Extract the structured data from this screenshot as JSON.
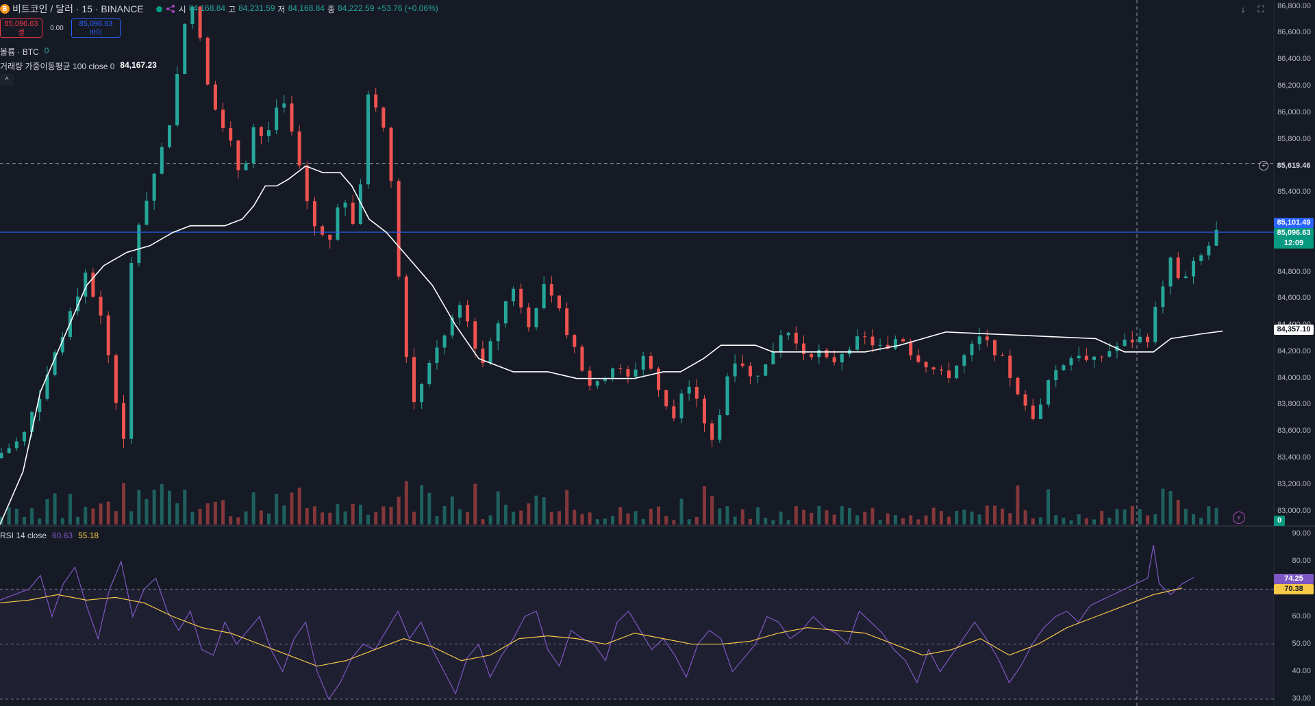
{
  "header": {
    "symbol_title": "비트코인 / 달러 · 15 · BINANCE",
    "btc_badge": "B",
    "ohlc": [
      {
        "k": "시",
        "v": "84,168.84"
      },
      {
        "k": "고",
        "v": "84,231.59"
      },
      {
        "k": "저",
        "v": "84,168.84"
      },
      {
        "k": "종",
        "v": "84,222.59"
      }
    ],
    "change": "+53.76 (+0.06%)"
  },
  "trade": {
    "sell_price": "85,096.63",
    "sell_label": "셀",
    "spread": "0.00",
    "buy_price": "85,096.63",
    "buy_label": "바이"
  },
  "legends": {
    "volume_label": "볼륨 · BTC",
    "volume_value": "0",
    "vwma_label": "거래량 가중이동평균 100 close 0",
    "vwma_value": "84,167.23",
    "collapse_icon": "^"
  },
  "rsi": {
    "label": "RSI 14 close",
    "value": "60.63",
    "ma_value": "55.18",
    "axis_ticks": [
      "90.00",
      "80.00",
      "60.00",
      "50.00",
      "40.00",
      "30.00"
    ],
    "rsi_tag": "74.25",
    "ma_tag": "70.38"
  },
  "price_axis": {
    "ticks": [
      "86,800.00",
      "86,600.00",
      "86,400.00",
      "86,200.00",
      "86,000.00",
      "85,800.00",
      "85,400.00",
      "84,800.00",
      "84,600.00",
      "84,400.00",
      "84,200.00",
      "84,000.00",
      "83,800.00",
      "83,600.00",
      "83,400.00",
      "83,200.00",
      "83,000.00"
    ],
    "crosshair_price": "85,619.46",
    "line_price": "85,101.49",
    "last_price": "85,096.63",
    "countdown": "12:09",
    "vwma_tag": "84,357.10",
    "volume_tag": "0"
  },
  "toolbar": {
    "download_icon": "↓",
    "fullscreen_icon": "⛶",
    "flash_icon": "⚡",
    "plus_icon": "+"
  },
  "colors": {
    "background": "#161a25",
    "up": "#26a69a",
    "down": "#ef5350",
    "rsi_line": "#7e57c2",
    "rsi_ma": "#f7c948",
    "price_line": "#2962ff",
    "vwma": "#ffffff"
  },
  "chart_data": {
    "type": "candlestick",
    "interval": "15",
    "y_range": [
      82900,
      86850
    ],
    "rsi_range": [
      30,
      90
    ],
    "candle_count": 160,
    "price_path": [
      [
        0,
        83400
      ],
      [
        10,
        83550
      ],
      [
        18,
        84000
      ],
      [
        25,
        84400
      ],
      [
        32,
        84800
      ],
      [
        38,
        84400
      ],
      [
        45,
        83500
      ],
      [
        48,
        85000
      ],
      [
        55,
        85500
      ],
      [
        62,
        86000
      ],
      [
        66,
        86700
      ],
      [
        70,
        86800
      ],
      [
        74,
        86200
      ],
      [
        80,
        85900
      ],
      [
        86,
        85500
      ],
      [
        90,
        85900
      ],
      [
        94,
        85800
      ],
      [
        100,
        86100
      ],
      [
        104,
        85800
      ],
      [
        110,
        85200
      ],
      [
        116,
        85000
      ],
      [
        120,
        85400
      ],
      [
        126,
        85100
      ],
      [
        130,
        86200
      ],
      [
        134,
        86000
      ],
      [
        138,
        85500
      ],
      [
        142,
        84300
      ],
      [
        146,
        83800
      ],
      [
        150,
        84100
      ],
      [
        156,
        84300
      ],
      [
        162,
        84600
      ],
      [
        166,
        84300
      ],
      [
        170,
        84100
      ],
      [
        176,
        84500
      ],
      [
        180,
        84700
      ],
      [
        186,
        84400
      ],
      [
        190,
        84700
      ],
      [
        196,
        84500
      ],
      [
        202,
        84200
      ],
      [
        208,
        83900
      ],
      [
        214,
        84100
      ],
      [
        220,
        84000
      ],
      [
        226,
        84200
      ],
      [
        232,
        83800
      ],
      [
        236,
        83700
      ],
      [
        240,
        84000
      ],
      [
        246,
        83700
      ],
      [
        250,
        83500
      ],
      [
        254,
        84000
      ],
      [
        258,
        84200
      ],
      [
        262,
        84000
      ],
      [
        268,
        84100
      ],
      [
        274,
        84400
      ],
      [
        280,
        84200
      ],
      [
        286,
        84200
      ],
      [
        290,
        84100
      ],
      [
        296,
        84250
      ],
      [
        302,
        84300
      ],
      [
        306,
        84250
      ],
      [
        310,
        84200
      ],
      [
        314,
        84350
      ],
      [
        318,
        84200
      ],
      [
        324,
        84100
      ],
      [
        330,
        84000
      ],
      [
        336,
        84150
      ],
      [
        342,
        84300
      ],
      [
        348,
        84200
      ],
      [
        352,
        84050
      ],
      [
        356,
        83800
      ],
      [
        362,
        83700
      ],
      [
        366,
        84000
      ],
      [
        370,
        84100
      ],
      [
        376,
        84200
      ],
      [
        380,
        84100
      ],
      [
        386,
        84200
      ],
      [
        390,
        84250
      ],
      [
        396,
        84300
      ],
      [
        400,
        84300
      ],
      [
        404,
        84600
      ],
      [
        408,
        84900
      ],
      [
        412,
        84700
      ],
      [
        416,
        84850
      ],
      [
        420,
        84950
      ],
      [
        424,
        85100
      ]
    ],
    "vwma_path": [
      [
        0,
        82900
      ],
      [
        8,
        83300
      ],
      [
        14,
        83900
      ],
      [
        20,
        84200
      ],
      [
        26,
        84500
      ],
      [
        30,
        84700
      ],
      [
        36,
        84850
      ],
      [
        44,
        84950
      ],
      [
        52,
        85000
      ],
      [
        60,
        85100
      ],
      [
        66,
        85150
      ],
      [
        72,
        85150
      ],
      [
        78,
        85150
      ],
      [
        84,
        85200
      ],
      [
        88,
        85300
      ],
      [
        92,
        85450
      ],
      [
        96,
        85450
      ],
      [
        100,
        85500
      ],
      [
        106,
        85600
      ],
      [
        112,
        85550
      ],
      [
        118,
        85550
      ],
      [
        122,
        85450
      ],
      [
        128,
        85200
      ],
      [
        134,
        85100
      ],
      [
        142,
        84900
      ],
      [
        150,
        84700
      ],
      [
        158,
        84400
      ],
      [
        166,
        84150
      ],
      [
        172,
        84100
      ],
      [
        178,
        84050
      ],
      [
        190,
        84050
      ],
      [
        200,
        84000
      ],
      [
        210,
        84000
      ],
      [
        220,
        84000
      ],
      [
        230,
        84050
      ],
      [
        236,
        84050
      ],
      [
        244,
        84150
      ],
      [
        250,
        84250
      ],
      [
        256,
        84250
      ],
      [
        262,
        84250
      ],
      [
        268,
        84200
      ],
      [
        278,
        84200
      ],
      [
        290,
        84200
      ],
      [
        300,
        84200
      ],
      [
        312,
        84250
      ],
      [
        320,
        84300
      ],
      [
        328,
        84350
      ]
    ],
    "rsi_path": [
      [
        0,
        66
      ],
      [
        5,
        68
      ],
      [
        10,
        70
      ],
      [
        14,
        75
      ],
      [
        18,
        60
      ],
      [
        22,
        72
      ],
      [
        26,
        78
      ],
      [
        30,
        64
      ],
      [
        34,
        52
      ],
      [
        38,
        70
      ],
      [
        42,
        80
      ],
      [
        46,
        60
      ],
      [
        50,
        70
      ],
      [
        54,
        74
      ],
      [
        58,
        62
      ],
      [
        62,
        55
      ],
      [
        66,
        62
      ],
      [
        70,
        48
      ],
      [
        74,
        46
      ],
      [
        78,
        58
      ],
      [
        82,
        50
      ],
      [
        86,
        55
      ],
      [
        90,
        60
      ],
      [
        94,
        48
      ],
      [
        98,
        40
      ],
      [
        102,
        52
      ],
      [
        106,
        58
      ],
      [
        110,
        40
      ],
      [
        114,
        30
      ],
      [
        118,
        36
      ],
      [
        122,
        45
      ],
      [
        126,
        50
      ],
      [
        130,
        48
      ],
      [
        134,
        55
      ],
      [
        138,
        62
      ],
      [
        142,
        52
      ],
      [
        146,
        58
      ],
      [
        150,
        48
      ],
      [
        154,
        40
      ],
      [
        158,
        32
      ],
      [
        162,
        45
      ],
      [
        166,
        50
      ],
      [
        170,
        38
      ],
      [
        174,
        46
      ],
      [
        178,
        52
      ],
      [
        182,
        60
      ],
      [
        186,
        62
      ],
      [
        190,
        48
      ],
      [
        194,
        42
      ],
      [
        198,
        55
      ],
      [
        202,
        52
      ],
      [
        206,
        50
      ],
      [
        210,
        44
      ],
      [
        214,
        58
      ],
      [
        218,
        62
      ],
      [
        222,
        55
      ],
      [
        226,
        48
      ],
      [
        230,
        52
      ],
      [
        234,
        46
      ],
      [
        238,
        38
      ],
      [
        242,
        50
      ],
      [
        246,
        55
      ],
      [
        250,
        52
      ],
      [
        254,
        40
      ],
      [
        258,
        45
      ],
      [
        262,
        50
      ],
      [
        266,
        60
      ],
      [
        270,
        58
      ],
      [
        274,
        52
      ],
      [
        278,
        55
      ],
      [
        282,
        60
      ],
      [
        286,
        56
      ],
      [
        290,
        54
      ],
      [
        294,
        50
      ],
      [
        298,
        62
      ],
      [
        302,
        58
      ],
      [
        306,
        54
      ],
      [
        310,
        48
      ],
      [
        314,
        44
      ],
      [
        318,
        36
      ],
      [
        322,
        48
      ],
      [
        326,
        40
      ],
      [
        330,
        46
      ],
      [
        334,
        52
      ],
      [
        338,
        58
      ],
      [
        342,
        52
      ],
      [
        346,
        45
      ],
      [
        350,
        36
      ],
      [
        354,
        42
      ],
      [
        358,
        50
      ],
      [
        362,
        56
      ],
      [
        366,
        60
      ],
      [
        370,
        62
      ],
      [
        374,
        58
      ],
      [
        378,
        64
      ],
      [
        382,
        66
      ],
      [
        386,
        68
      ],
      [
        390,
        70
      ],
      [
        394,
        72
      ],
      [
        398,
        74
      ],
      [
        400,
        86
      ],
      [
        402,
        72
      ],
      [
        406,
        68
      ],
      [
        410,
        72
      ],
      [
        414,
        74.25
      ]
    ],
    "rsi_ma_path": [
      [
        0,
        65
      ],
      [
        10,
        66
      ],
      [
        20,
        68
      ],
      [
        30,
        66
      ],
      [
        40,
        67
      ],
      [
        50,
        65
      ],
      [
        60,
        60
      ],
      [
        70,
        56
      ],
      [
        80,
        54
      ],
      [
        90,
        50
      ],
      [
        100,
        46
      ],
      [
        110,
        42
      ],
      [
        120,
        44
      ],
      [
        130,
        48
      ],
      [
        140,
        52
      ],
      [
        150,
        49
      ],
      [
        160,
        44
      ],
      [
        170,
        46
      ],
      [
        180,
        52
      ],
      [
        190,
        53
      ],
      [
        200,
        52
      ],
      [
        210,
        50
      ],
      [
        220,
        54
      ],
      [
        230,
        52
      ],
      [
        240,
        50
      ],
      [
        250,
        50
      ],
      [
        260,
        51
      ],
      [
        270,
        54
      ],
      [
        280,
        56
      ],
      [
        290,
        55
      ],
      [
        300,
        54
      ],
      [
        310,
        50
      ],
      [
        320,
        46
      ],
      [
        330,
        48
      ],
      [
        340,
        52
      ],
      [
        350,
        46
      ],
      [
        360,
        50
      ],
      [
        370,
        56
      ],
      [
        380,
        60
      ],
      [
        390,
        64
      ],
      [
        400,
        68
      ],
      [
        410,
        70.38
      ]
    ]
  }
}
